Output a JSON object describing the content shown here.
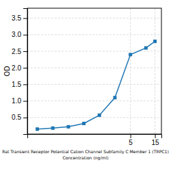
{
  "chart_data": {
    "type": "line",
    "x": [
      0.078,
      0.156,
      0.313,
      0.625,
      1.25,
      2.5,
      5,
      10,
      15
    ],
    "values": [
      0.15,
      0.18,
      0.22,
      0.32,
      0.57,
      1.1,
      2.4,
      2.6,
      2.8
    ],
    "xlabel": "Rat Transient Receptor Potential Cation Channel Subfamily C Member 1 (TRPC1)\nConcentration (ng/ml)",
    "ylabel": "OD",
    "log": "x",
    "xlim": [
      0.05,
      20
    ],
    "ylim": [
      0,
      3.8
    ],
    "xticks": [
      5,
      15
    ],
    "yticks": [
      0.5,
      {
        "value": 1.0,
        "label": "1.0"
      },
      1.5,
      {
        "value": 2.0,
        "label": "2.0"
      },
      2.5,
      {
        "value": 3.0,
        "label": "3.0"
      },
      3.5
    ],
    "grid": true,
    "marker": "square"
  }
}
